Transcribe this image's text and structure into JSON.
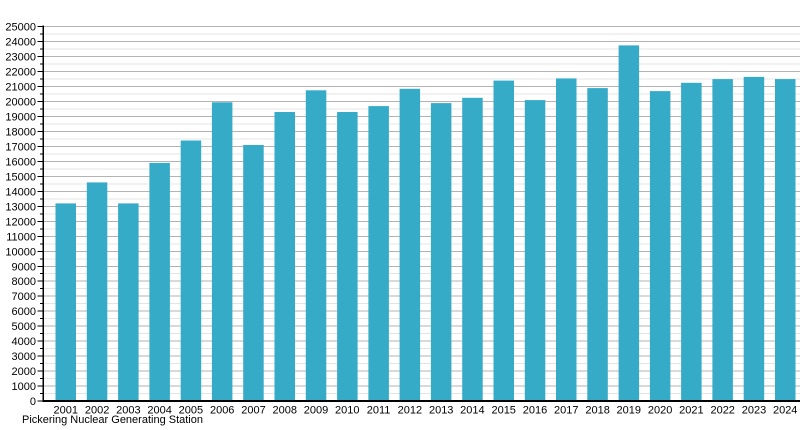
{
  "chart_data": {
    "type": "bar",
    "title": "",
    "caption": "Pickering Nuclear Generating Station",
    "xlabel": "",
    "ylabel": "",
    "categories": [
      "2001",
      "2002",
      "2003",
      "2004",
      "2005",
      "2006",
      "2007",
      "2008",
      "2009",
      "2010",
      "2011",
      "2012",
      "2013",
      "2014",
      "2015",
      "2016",
      "2017",
      "2018",
      "2019",
      "2020",
      "2021",
      "2022",
      "2023",
      "2024"
    ],
    "values": [
      13200,
      14600,
      13200,
      15900,
      17400,
      19950,
      17100,
      19300,
      20750,
      19300,
      19700,
      20850,
      19900,
      20250,
      21400,
      20100,
      21550,
      20900,
      23750,
      20700,
      21250,
      21500,
      21650,
      21500
    ],
    "ylim": [
      0,
      25000
    ],
    "ytick_major_step": 1000,
    "ytick_minor_step": 500,
    "ytick_labels": [
      "0",
      "1000",
      "2000",
      "3000",
      "4000",
      "5000",
      "6000",
      "7000",
      "8000",
      "9000",
      "10000",
      "11000",
      "12000",
      "13000",
      "14000",
      "15000",
      "16000",
      "17000",
      "18000",
      "19000",
      "20000",
      "21000",
      "22000",
      "23000",
      "24000",
      "25000"
    ],
    "grid": "horizontal major and minor, on",
    "legend": "none"
  },
  "colors": {
    "bar": "#35ABC8",
    "grid_major": "#b3b3b3",
    "grid_minor": "#e4e4e4",
    "axis": "#000000",
    "text": "#000000",
    "background": "#ffffff"
  }
}
